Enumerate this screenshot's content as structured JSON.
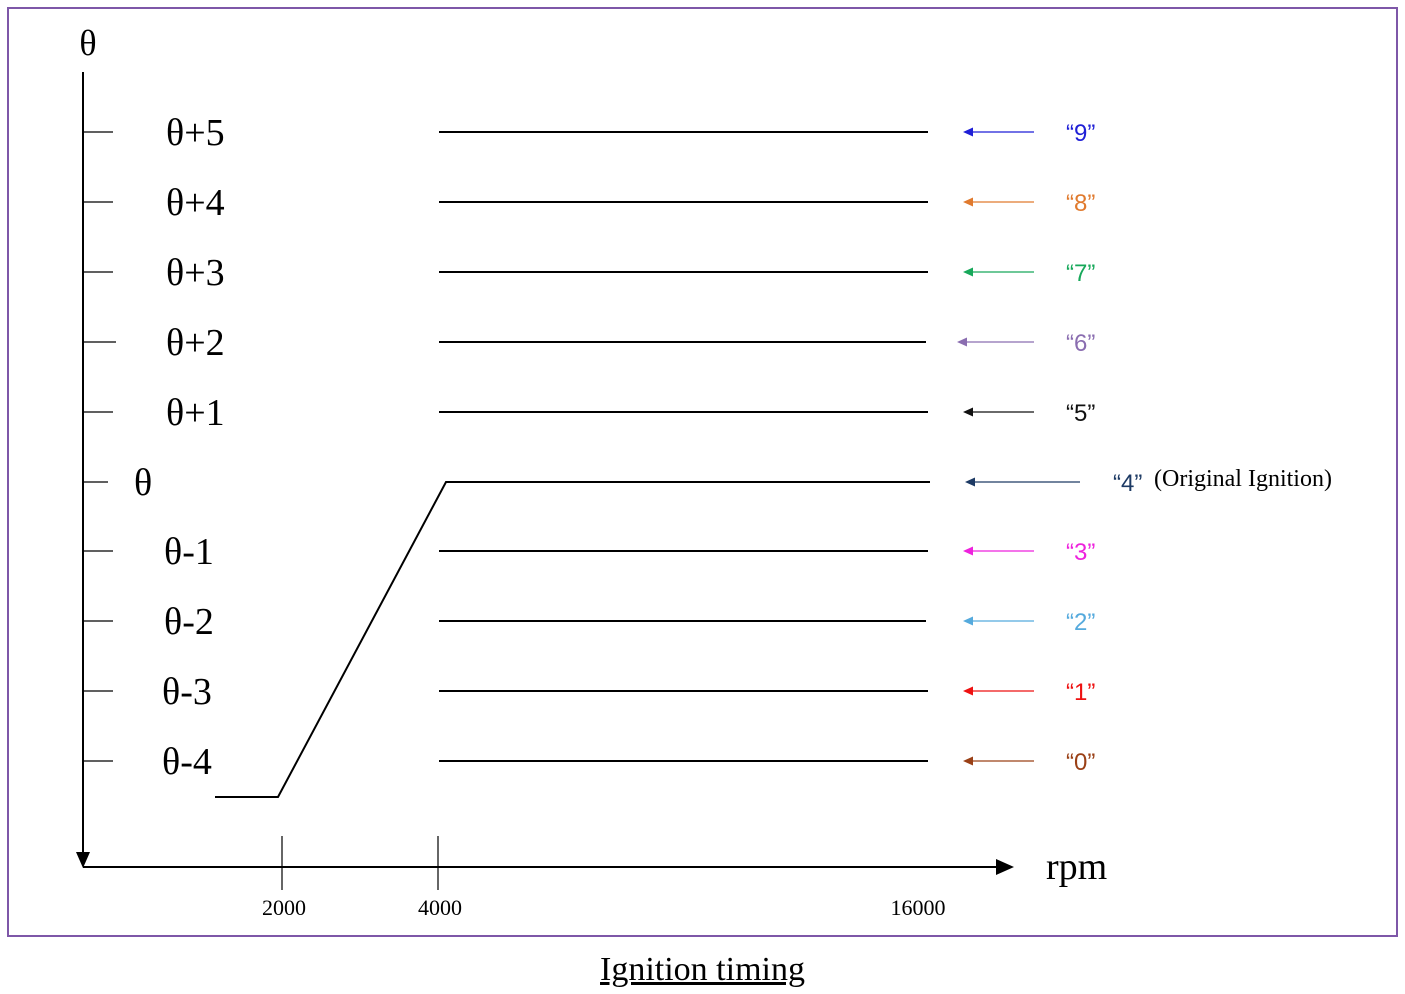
{
  "y_axis_label": "θ",
  "x_axis_label": "rpm",
  "x_ticks": [
    "2000",
    "4000",
    "16000"
  ],
  "caption": "Ignition timing",
  "levels": [
    {
      "label": "θ+5",
      "code": "“9”",
      "color": "#1f1fd6"
    },
    {
      "label": "θ+4",
      "code": "“8”",
      "color": "#e07a2e"
    },
    {
      "label": "θ+3",
      "code": "“7”",
      "color": "#17a85a"
    },
    {
      "label": "θ+2",
      "code": "“6”",
      "color": "#8a6db0"
    },
    {
      "label": "θ+1",
      "code": "“5”",
      "color": "#111111"
    },
    {
      "label": "θ",
      "code": "“4”",
      "note": "(Original Ignition)",
      "color": "#1d3a64"
    },
    {
      "label": "θ-1",
      "code": "“3”",
      "color": "#ee22dd"
    },
    {
      "label": "θ-2",
      "code": "“2”",
      "color": "#55aadd"
    },
    {
      "label": "θ-3",
      "code": "“1”",
      "color": "#ee1111"
    },
    {
      "label": "θ-4",
      "code": "“0”",
      "color": "#9a4016"
    }
  ],
  "curve": {
    "description_points_rpm": [
      1500,
      2000,
      4000,
      16000
    ],
    "description_points_level": [
      "below θ-4",
      "θ-4",
      "θ",
      "θ"
    ]
  }
}
